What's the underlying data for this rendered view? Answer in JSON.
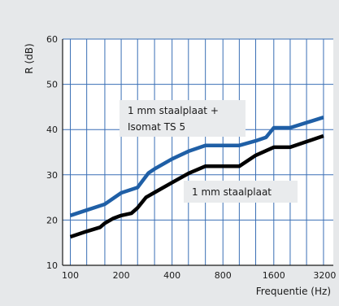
{
  "chart_data": {
    "type": "line",
    "xlabel": "Frequentie (Hz)",
    "ylabel": "R (dB)",
    "x_scale": "log",
    "xlim": [
      90,
      3600
    ],
    "ylim": [
      10,
      60
    ],
    "x_ticks": [
      100,
      200,
      400,
      800,
      1600,
      3200
    ],
    "x_gridlines": [
      100,
      125,
      160,
      200,
      250,
      315,
      400,
      500,
      630,
      800,
      1000,
      1250,
      1600,
      2000,
      2500,
      3150
    ],
    "y_ticks": [
      10,
      20,
      30,
      40,
      50,
      60
    ],
    "grid": true,
    "series": [
      {
        "name": "1 mm staalplaat + Isomat TS 5",
        "label_lines": [
          "1 mm staalplaat +",
          "Isomat TS 5"
        ],
        "color": "#1f5fa6",
        "points": [
          [
            100,
            21
          ],
          [
            125,
            22.2
          ],
          [
            160,
            23.5
          ],
          [
            200,
            26
          ],
          [
            250,
            27.2
          ],
          [
            290,
            30.4
          ],
          [
            315,
            31.3
          ],
          [
            400,
            33.5
          ],
          [
            500,
            35.2
          ],
          [
            630,
            36.5
          ],
          [
            800,
            36.5
          ],
          [
            1000,
            36.5
          ],
          [
            1250,
            37.5
          ],
          [
            1440,
            38.3
          ],
          [
            1600,
            40.4
          ],
          [
            2000,
            40.4
          ],
          [
            3150,
            42.7
          ]
        ]
      },
      {
        "name": "1 mm staalplaat",
        "label_lines": [
          "1 mm staalplaat"
        ],
        "color": "#000000",
        "points": [
          [
            100,
            16.3
          ],
          [
            125,
            17.5
          ],
          [
            150,
            18.4
          ],
          [
            160,
            19.3
          ],
          [
            180,
            20.4
          ],
          [
            200,
            21
          ],
          [
            230,
            21.5
          ],
          [
            250,
            22.7
          ],
          [
            280,
            25
          ],
          [
            315,
            26.1
          ],
          [
            400,
            28.3
          ],
          [
            500,
            30.3
          ],
          [
            630,
            31.9
          ],
          [
            800,
            31.9
          ],
          [
            1000,
            31.9
          ],
          [
            1250,
            34.3
          ],
          [
            1600,
            36.1
          ],
          [
            2000,
            36.1
          ],
          [
            3150,
            38.6
          ]
        ]
      }
    ]
  }
}
